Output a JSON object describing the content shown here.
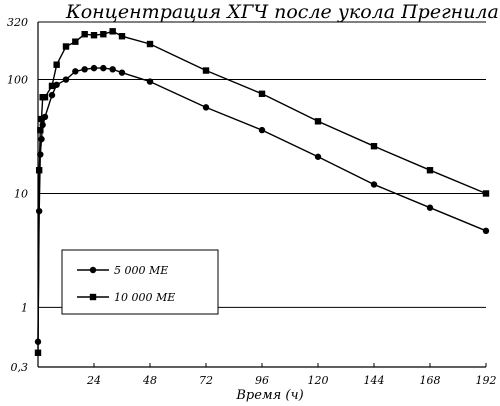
{
  "chart_data": {
    "type": "line",
    "title": "Концентрация ХГЧ после укола Прегнила",
    "xlabel": "Время (ч)",
    "ylabel": "",
    "x_ticks": [
      "24",
      "48",
      "72",
      "96",
      "120",
      "144",
      "168",
      "192"
    ],
    "y_ticks": [
      "0,3",
      "1",
      "10",
      "100",
      "320"
    ],
    "y_scale": "log",
    "ylim": [
      0.3,
      320
    ],
    "xlim": [
      0,
      192
    ],
    "grid": "horizontal",
    "legend_position": "bottom-left",
    "series": [
      {
        "name": "5 000 МЕ",
        "marker": "circle",
        "x": [
          0,
          0.5,
          1,
          1.5,
          2,
          3,
          6,
          8,
          12,
          16,
          20,
          24,
          28,
          32,
          36,
          48,
          72,
          96,
          120,
          144,
          168,
          192
        ],
        "y": [
          0.5,
          7,
          22,
          30,
          40,
          47,
          73,
          90,
          100,
          118,
          123,
          126,
          126,
          123,
          115,
          96,
          57,
          36,
          21,
          12,
          7.5,
          4.7
        ]
      },
      {
        "name": "10 000 МЕ",
        "marker": "square",
        "x": [
          0,
          0.5,
          1,
          1.5,
          2,
          3,
          6,
          8,
          12,
          16,
          20,
          24,
          28,
          32,
          36,
          48,
          72,
          96,
          120,
          144,
          168,
          192
        ],
        "y": [
          0.4,
          16,
          36,
          45,
          70,
          70,
          88,
          135,
          195,
          215,
          250,
          245,
          250,
          265,
          240,
          205,
          120,
          75,
          43,
          26,
          16,
          10
        ]
      }
    ]
  }
}
